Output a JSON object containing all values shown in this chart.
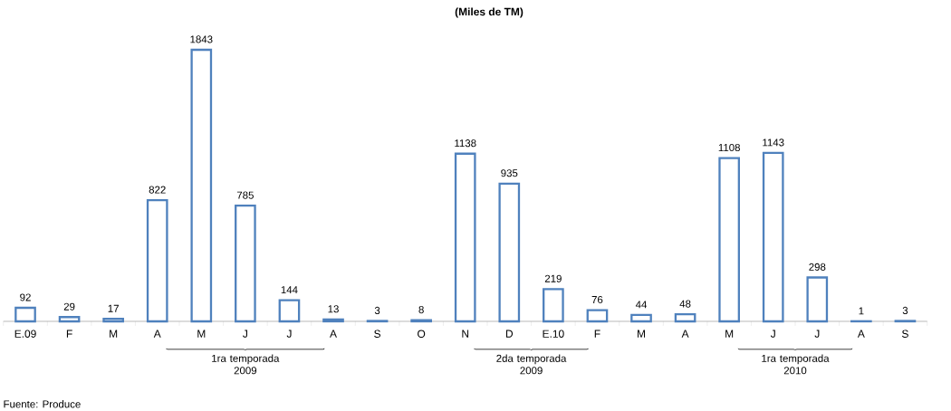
{
  "chart_data": {
    "type": "bar",
    "title": "(Miles de TM)",
    "categories": [
      "E.09",
      "F",
      "M",
      "A",
      "M",
      "J",
      "J",
      "A",
      "S",
      "O",
      "N",
      "D",
      "E.10",
      "F",
      "M",
      "A",
      "M",
      "J",
      "J",
      "A",
      "S"
    ],
    "values": [
      92,
      29,
      17,
      822,
      1843,
      785,
      144,
      13,
      3,
      8,
      1138,
      935,
      219,
      76,
      44,
      48,
      1108,
      1143,
      298,
      1,
      3
    ],
    "color": "#4f81bd",
    "data_labels": true,
    "annotations": [
      "1ra temporada 2009",
      "2da temporada 2009",
      "1ra temporada 2010",
      "Fuente: Produce"
    ]
  }
}
